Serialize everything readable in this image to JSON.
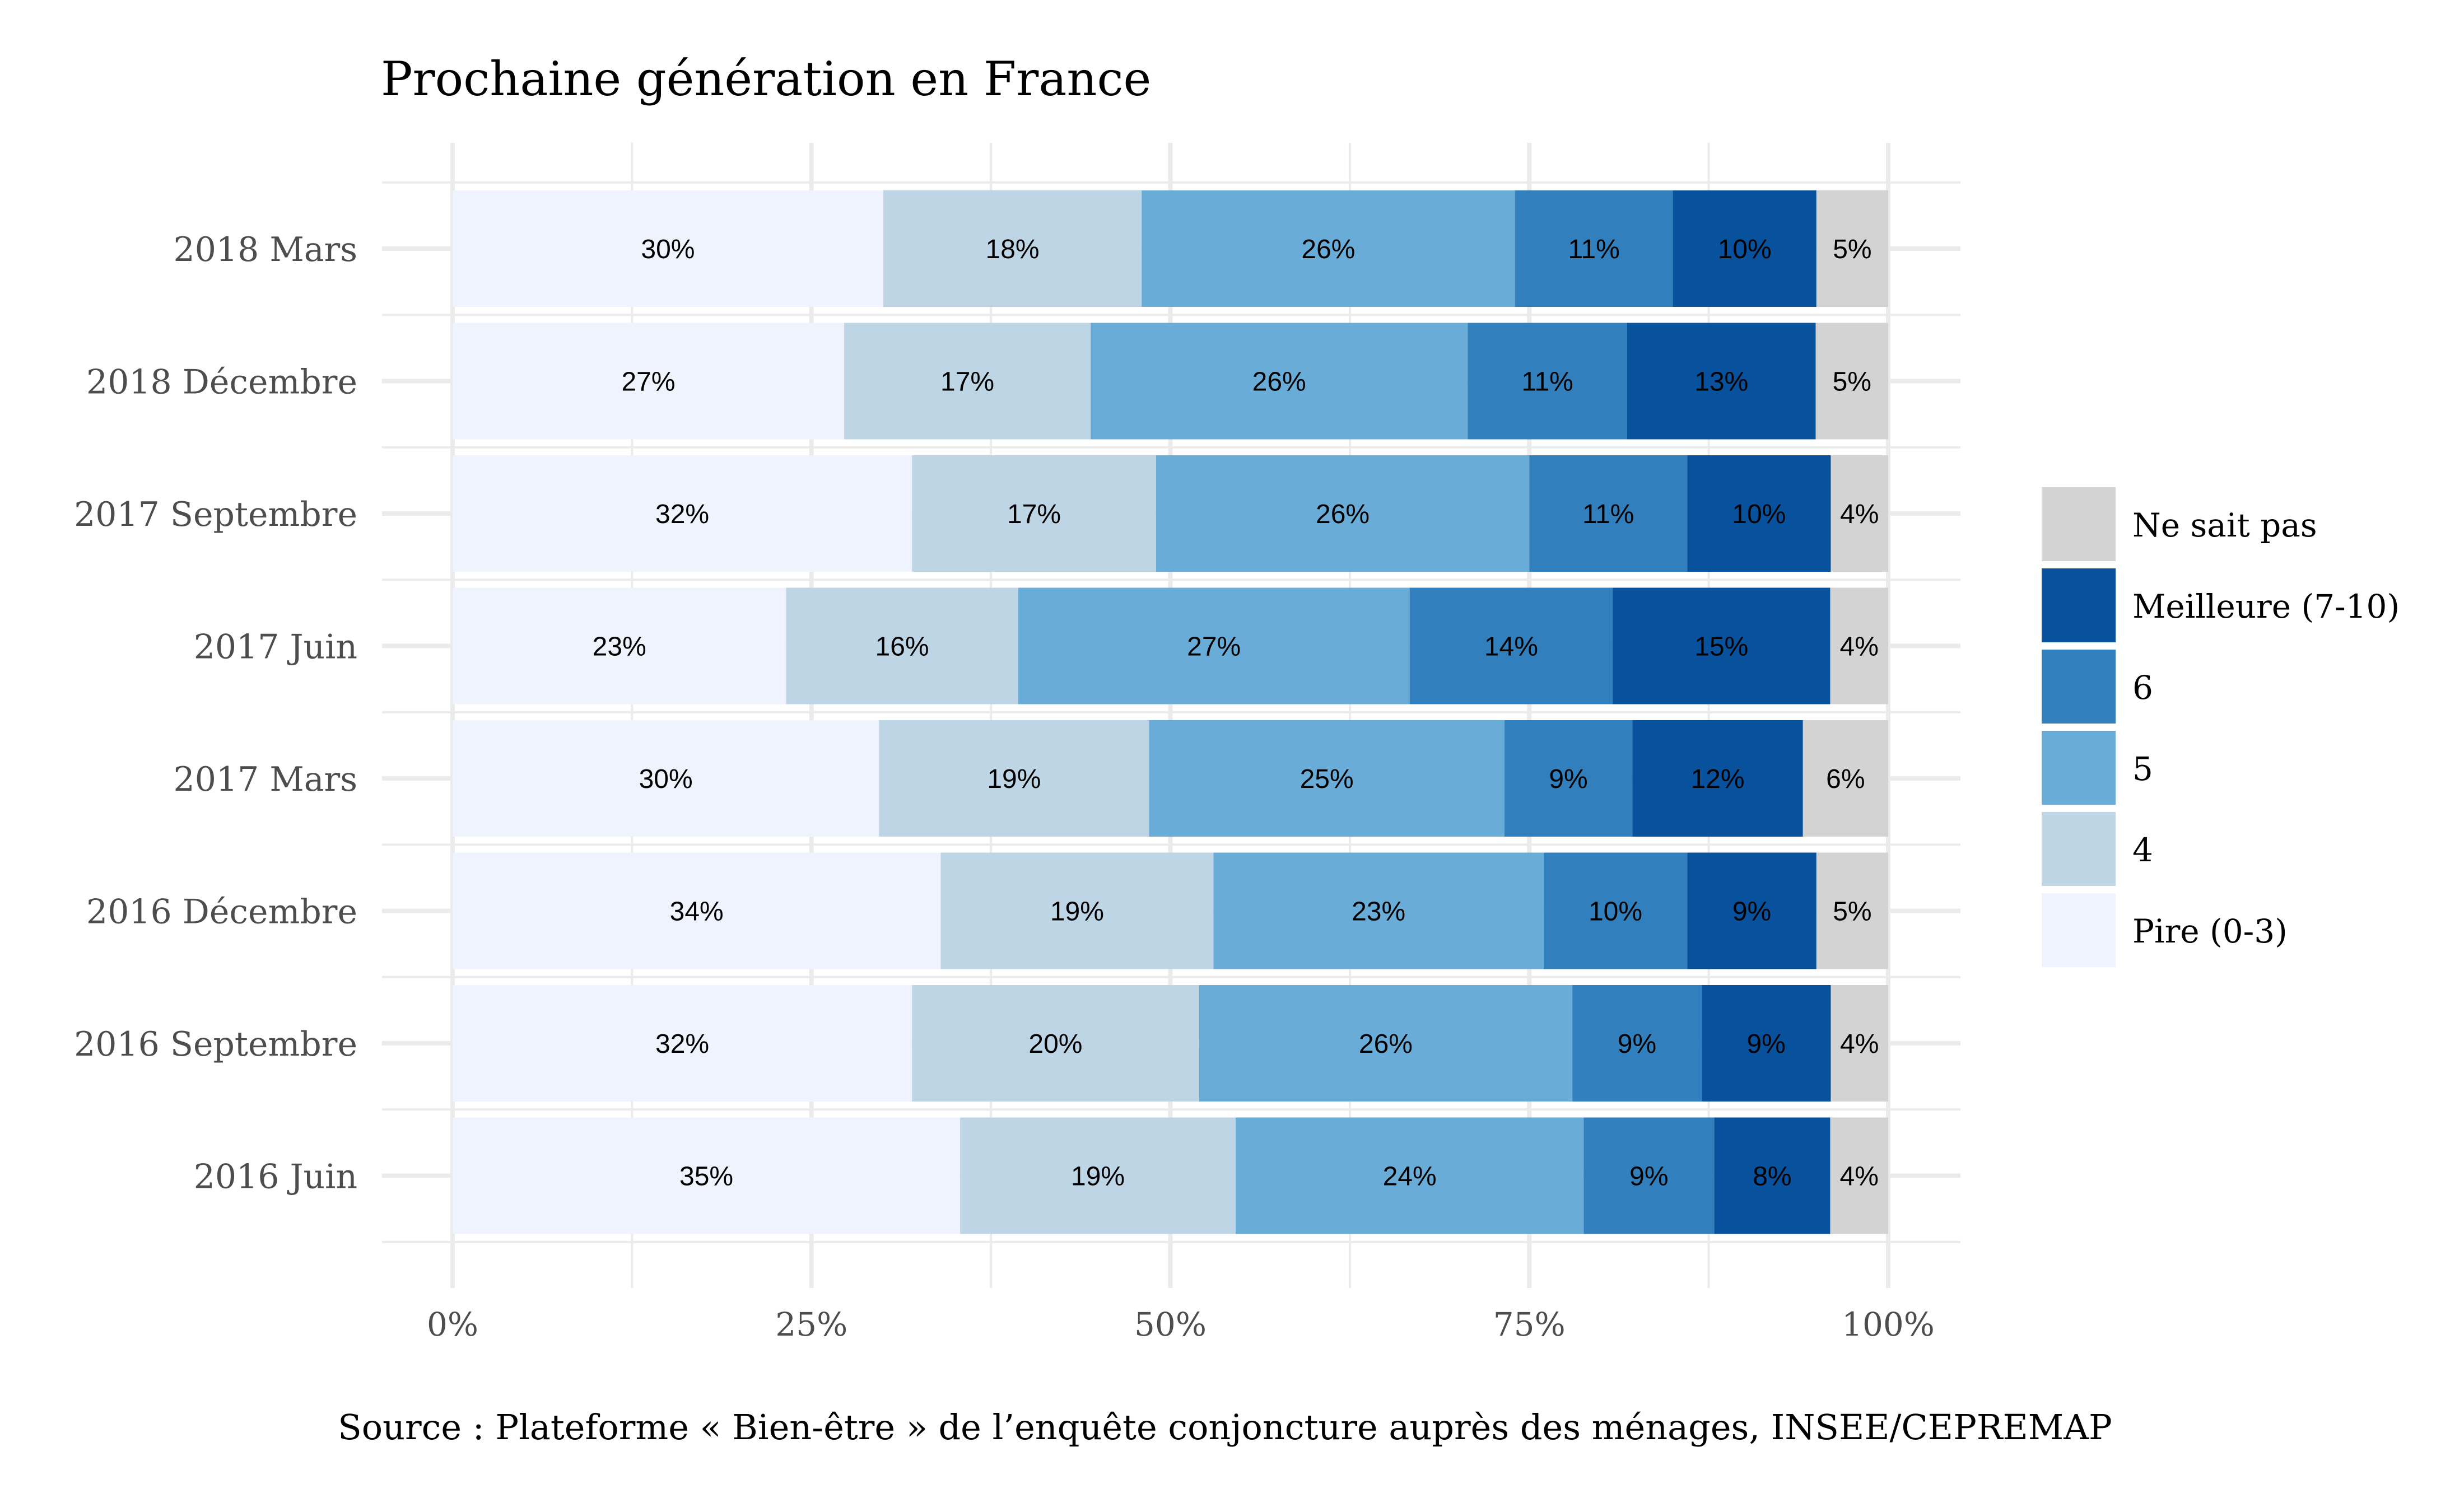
{
  "chart_data": {
    "type": "bar",
    "orientation": "horizontal",
    "stacked": true,
    "title": "Prochaine génération en France",
    "caption": "Source : Plateforme « Bien-être » de l’enquête conjoncture auprès des ménages, INSEE/CEPREMAP",
    "xlabel": "",
    "ylabel": "",
    "xlim": [
      0,
      100
    ],
    "x_ticks": [
      "0%",
      "25%",
      "50%",
      "75%",
      "100%"
    ],
    "grid": true,
    "legend_position": "right",
    "categories": [
      "2018 Mars",
      "2018 Décembre",
      "2017 Septembre",
      "2017 Juin",
      "2017 Mars",
      "2016 Décembre",
      "2016 Septembre",
      "2016 Juin"
    ],
    "series": [
      {
        "name": "Pire (0-3)",
        "color": "#eef3fd",
        "values": [
          30,
          27,
          32,
          23,
          30,
          34,
          32,
          35
        ],
        "labels": [
          "30%",
          "27%",
          "32%",
          "23%",
          "30%",
          "34%",
          "32%",
          "35%"
        ]
      },
      {
        "name": "4",
        "color": "#bed5e6",
        "values": [
          18,
          17,
          17,
          16,
          19,
          19,
          20,
          19
        ],
        "labels": [
          "18%",
          "17%",
          "17%",
          "16%",
          "19%",
          "19%",
          "20%",
          "19%"
        ]
      },
      {
        "name": "5",
        "color": "#69acd7",
        "values": [
          26,
          26,
          26,
          27,
          25,
          23,
          26,
          24
        ],
        "labels": [
          "26%",
          "26%",
          "26%",
          "27%",
          "25%",
          "23%",
          "26%",
          "24%"
        ]
      },
      {
        "name": "6",
        "color": "#3180bd",
        "values": [
          11,
          11,
          11,
          14,
          9,
          10,
          9,
          9
        ],
        "labels": [
          "11%",
          "11%",
          "11%",
          "14%",
          "9%",
          "10%",
          "9%",
          "9%"
        ]
      },
      {
        "name": "Meilleure (7-10)",
        "color": "#08519c",
        "values": [
          10,
          13,
          10,
          15,
          12,
          9,
          9,
          8
        ],
        "labels": [
          "10%",
          "13%",
          "10%",
          "15%",
          "12%",
          "9%",
          "9%",
          "8%"
        ]
      },
      {
        "name": "Ne sait pas",
        "color": "#d3d3d3",
        "values": [
          5,
          5,
          4,
          4,
          6,
          5,
          4,
          4
        ],
        "labels": [
          "5%",
          "5%",
          "4%",
          "4%",
          "6%",
          "5%",
          "4%",
          "4%"
        ]
      }
    ],
    "legend_order": [
      "Ne sait pas",
      "Meilleure (7-10)",
      "6",
      "5",
      "4",
      "Pire (0-3)"
    ],
    "colors": {
      "grid": "#ebebeb",
      "axis_text": "#4d4d4d",
      "title": "#000000",
      "label_text": "#000000"
    }
  }
}
